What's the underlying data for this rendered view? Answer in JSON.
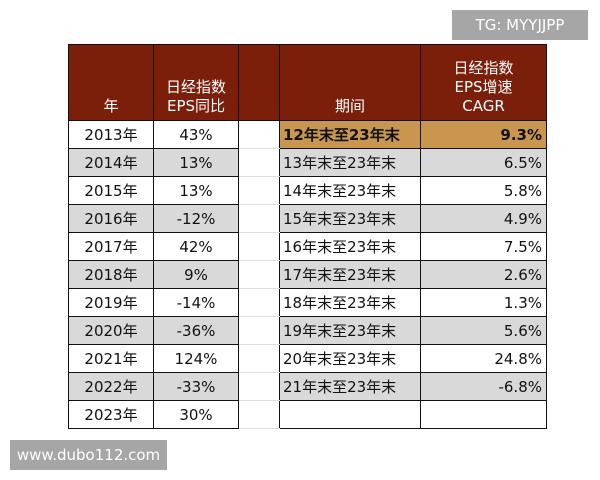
{
  "watermarks": {
    "top": "TG: MYYJJPP",
    "bottom": "www.dubo112.com"
  },
  "headers": {
    "year": "年",
    "yoy_l1": "日经指数",
    "yoy_l2": "EPS同比",
    "period": "期间",
    "cagr_l1": "日经指数",
    "cagr_l2": "EPS增速",
    "cagr_l3": "CAGR"
  },
  "colors": {
    "header": "#7b1f0b",
    "highlight": "#c8964f",
    "stripe": "#d9d9d9"
  },
  "rows": [
    {
      "year": "2013年",
      "yoy": "43%",
      "period": "12年末至23年末",
      "cagr": "9.3%"
    },
    {
      "year": "2014年",
      "yoy": "13%",
      "period": "13年末至23年末",
      "cagr": "6.5%"
    },
    {
      "year": "2015年",
      "yoy": "13%",
      "period": "14年末至23年末",
      "cagr": "5.8%"
    },
    {
      "year": "2016年",
      "yoy": "-12%",
      "period": "15年末至23年末",
      "cagr": "4.9%"
    },
    {
      "year": "2017年",
      "yoy": "42%",
      "period": "16年末至23年末",
      "cagr": "7.5%"
    },
    {
      "year": "2018年",
      "yoy": "9%",
      "period": "17年末至23年末",
      "cagr": "2.6%"
    },
    {
      "year": "2019年",
      "yoy": "-14%",
      "period": "18年末至23年末",
      "cagr": "1.3%"
    },
    {
      "year": "2020年",
      "yoy": "-36%",
      "period": "19年末至23年末",
      "cagr": "5.6%"
    },
    {
      "year": "2021年",
      "yoy": "124%",
      "period": "20年末至23年末",
      "cagr": "24.8%"
    },
    {
      "year": "2022年",
      "yoy": "-33%",
      "period": "21年末至23年末",
      "cagr": "-6.8%"
    },
    {
      "year": "2023年",
      "yoy": "30%",
      "period": "",
      "cagr": ""
    }
  ]
}
